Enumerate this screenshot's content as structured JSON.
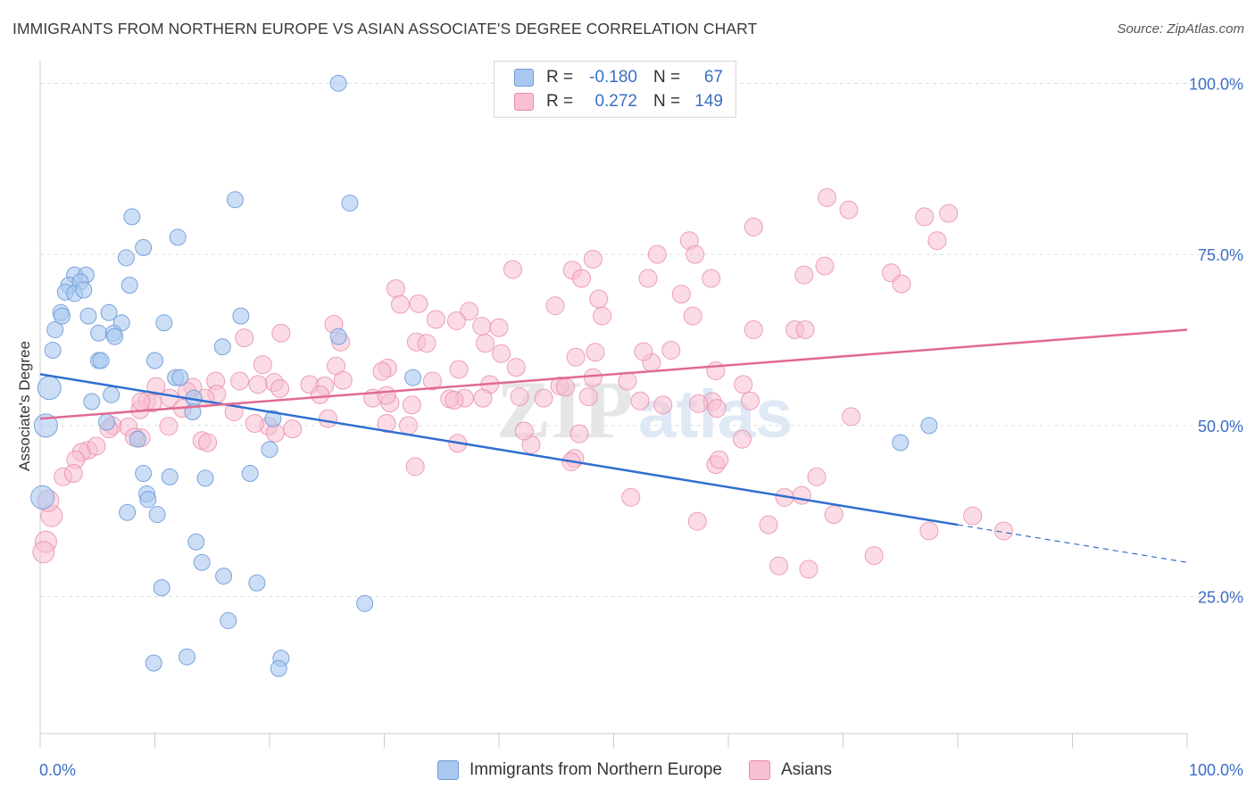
{
  "header": {
    "title": "IMMIGRANTS FROM NORTHERN EUROPE VS ASIAN ASSOCIATE'S DEGREE CORRELATION CHART",
    "source": "Source: ZipAtlas.com"
  },
  "watermark": {
    "part1": "ZIP",
    "part2": "atlas"
  },
  "legend": {
    "series": [
      {
        "r_label": "R =",
        "r_value": "-0.180",
        "n_label": "N =",
        "n_value": "67",
        "color": "#a9c8f0",
        "border": "#6f9ad8"
      },
      {
        "r_label": "R =",
        "r_value": "0.272",
        "n_label": "N =",
        "n_value": "149",
        "color": "#f8c0d2",
        "border": "#e88aa8"
      }
    ]
  },
  "bottom_legend": [
    {
      "label": "Immigrants from Northern Europe",
      "color": "#a9c8f0",
      "border": "#6f9ad8"
    },
    {
      "label": "Asians",
      "color": "#f8c0d2",
      "border": "#e88aa8"
    }
  ],
  "chart_data": {
    "type": "scatter",
    "ylabel": "Associate's Degree",
    "xlim": [
      0,
      100
    ],
    "ylim": [
      5,
      102
    ],
    "x_tick_labels": [
      "0.0%",
      "100.0%"
    ],
    "y_tick_labels": [
      {
        "value": 25,
        "label": "25.0%"
      },
      {
        "value": 50,
        "label": "50.0%"
      },
      {
        "value": 75,
        "label": "75.0%"
      },
      {
        "value": 100,
        "label": "100.0%"
      }
    ],
    "grid": true,
    "colors": {
      "blue_fill": "#a9c8f0",
      "blue_stroke": "#6f9ad8",
      "blue_line": "#2f6fd0",
      "pink_fill": "#f8c0d2",
      "pink_stroke": "#e88aa8",
      "pink_line": "#e06a94",
      "tick_label": "#3b6fc6"
    },
    "series": [
      {
        "name": "Immigrants from Northern Europe",
        "trend": {
          "x0": 0,
          "y0": 57.5,
          "x1": 80,
          "y1": 35.5,
          "dash_x1": 100,
          "dash_y1": 30
        },
        "points": [
          [
            26,
            100
          ],
          [
            17,
            83
          ],
          [
            27,
            82.5
          ],
          [
            8,
            80.5
          ],
          [
            12,
            77.5
          ],
          [
            9,
            76
          ],
          [
            7.5,
            74.5
          ],
          [
            3,
            72
          ],
          [
            4,
            72
          ],
          [
            2.5,
            70.5
          ],
          [
            3.5,
            71
          ],
          [
            7.8,
            70.5
          ],
          [
            2.2,
            69.5
          ],
          [
            3,
            69.3
          ],
          [
            3.8,
            69.8
          ],
          [
            1.8,
            66.5
          ],
          [
            1.9,
            66
          ],
          [
            4.2,
            66
          ],
          [
            6,
            66.5
          ],
          [
            17.5,
            66
          ],
          [
            10.8,
            65
          ],
          [
            7.1,
            65
          ],
          [
            1.3,
            64
          ],
          [
            5.1,
            63.5
          ],
          [
            6.4,
            63.5
          ],
          [
            6.5,
            63
          ],
          [
            26,
            63
          ],
          [
            1.1,
            61
          ],
          [
            15.9,
            61.5
          ],
          [
            5.1,
            59.5
          ],
          [
            5.3,
            59.5
          ],
          [
            10,
            59.5
          ],
          [
            11.8,
            57
          ],
          [
            12.2,
            57
          ],
          [
            0.8,
            55.5
          ],
          [
            32.5,
            57
          ],
          [
            6.2,
            54.5
          ],
          [
            4.5,
            53.5
          ],
          [
            13.4,
            54
          ],
          [
            13.3,
            52
          ],
          [
            5.8,
            50.5
          ],
          [
            0.5,
            50
          ],
          [
            20.3,
            51
          ],
          [
            75,
            47.5
          ],
          [
            77.5,
            50
          ],
          [
            8.5,
            48
          ],
          [
            20,
            46.5
          ],
          [
            9,
            43
          ],
          [
            11.3,
            42.5
          ],
          [
            14.4,
            42.3
          ],
          [
            18.3,
            43
          ],
          [
            9.3,
            40
          ],
          [
            9.4,
            39.2
          ],
          [
            0.2,
            39.5
          ],
          [
            7.6,
            37.3
          ],
          [
            10.2,
            37
          ],
          [
            13.6,
            33
          ],
          [
            14.1,
            30
          ],
          [
            16,
            28
          ],
          [
            18.9,
            27
          ],
          [
            10.6,
            26.3
          ],
          [
            28.3,
            24
          ],
          [
            16.4,
            21.5
          ],
          [
            12.8,
            16.2
          ],
          [
            9.9,
            15.3
          ],
          [
            21,
            16
          ],
          [
            20.8,
            14.5
          ]
        ]
      },
      {
        "name": "Asians",
        "trend": {
          "x0": 0,
          "y0": 51,
          "x1": 100,
          "y1": 64
        },
        "points": [
          [
            68.6,
            83.3
          ],
          [
            70.5,
            81.5
          ],
          [
            77.1,
            80.5
          ],
          [
            79.2,
            81
          ],
          [
            62.2,
            79
          ],
          [
            56.6,
            77
          ],
          [
            78.2,
            77
          ],
          [
            48.2,
            74.3
          ],
          [
            53.8,
            75
          ],
          [
            57.1,
            75
          ],
          [
            68.4,
            73.3
          ],
          [
            66.6,
            72
          ],
          [
            41.2,
            72.8
          ],
          [
            46.4,
            72.7
          ],
          [
            47.2,
            71.5
          ],
          [
            53,
            71.5
          ],
          [
            58.5,
            71.5
          ],
          [
            74.2,
            72.3
          ],
          [
            75.1,
            70.7
          ],
          [
            31,
            70
          ],
          [
            55.9,
            69.2
          ],
          [
            48.7,
            68.5
          ],
          [
            31.4,
            67.7
          ],
          [
            33,
            67.8
          ],
          [
            44.9,
            67.5
          ],
          [
            37.4,
            66.7
          ],
          [
            49,
            66
          ],
          [
            56.9,
            66
          ],
          [
            36.3,
            65.3
          ],
          [
            34.5,
            65.5
          ],
          [
            25.6,
            64.8
          ],
          [
            38.5,
            64.5
          ],
          [
            40,
            64.3
          ],
          [
            62.2,
            64
          ],
          [
            65.8,
            64
          ],
          [
            66.7,
            64
          ],
          [
            21,
            63.5
          ],
          [
            17.8,
            62.8
          ],
          [
            26.2,
            62.2
          ],
          [
            32.8,
            62.2
          ],
          [
            33.7,
            62
          ],
          [
            38.8,
            62
          ],
          [
            55,
            61
          ],
          [
            48.4,
            60.7
          ],
          [
            46.7,
            60
          ],
          [
            53.3,
            59.2
          ],
          [
            19.4,
            58.9
          ],
          [
            25.8,
            58.7
          ],
          [
            30.3,
            58.4
          ],
          [
            36.5,
            58.2
          ],
          [
            41.5,
            58.5
          ],
          [
            58.9,
            58
          ],
          [
            29.8,
            57.9
          ],
          [
            26.4,
            56.6
          ],
          [
            34.2,
            56.5
          ],
          [
            23.5,
            56
          ],
          [
            20.4,
            56.3
          ],
          [
            19,
            56
          ],
          [
            17.4,
            56.5
          ],
          [
            20.9,
            55.4
          ],
          [
            24.8,
            55.8
          ],
          [
            45.3,
            55.8
          ],
          [
            45.8,
            55.6
          ],
          [
            39.2,
            56
          ],
          [
            48.2,
            57
          ],
          [
            51.2,
            56.5
          ],
          [
            61.3,
            56
          ],
          [
            13.3,
            55.6
          ],
          [
            15.3,
            56.5
          ],
          [
            10.1,
            55.7
          ],
          [
            12.8,
            55
          ],
          [
            15.4,
            54.6
          ],
          [
            14.4,
            54
          ],
          [
            9.3,
            53.6
          ],
          [
            9.8,
            53.3
          ],
          [
            11.3,
            54
          ],
          [
            30.5,
            53.3
          ],
          [
            32.4,
            53
          ],
          [
            37,
            54
          ],
          [
            29,
            54
          ],
          [
            24.4,
            54.5
          ],
          [
            30.2,
            54.4
          ],
          [
            35.7,
            53.9
          ],
          [
            36.1,
            53.7
          ],
          [
            38.6,
            54
          ],
          [
            41.8,
            54.2
          ],
          [
            43.9,
            54
          ],
          [
            47.8,
            54.2
          ],
          [
            52.3,
            53.6
          ],
          [
            58.6,
            53.5
          ],
          [
            57.4,
            53.2
          ],
          [
            54.3,
            53
          ],
          [
            59,
            52.5
          ],
          [
            61.9,
            53.6
          ],
          [
            70.7,
            51.3
          ],
          [
            12.4,
            52.5
          ],
          [
            8.7,
            52.3
          ],
          [
            16.9,
            52
          ],
          [
            25.1,
            51
          ],
          [
            30.2,
            50.3
          ],
          [
            32.1,
            50
          ],
          [
            22,
            49.5
          ],
          [
            6.3,
            50
          ],
          [
            6,
            49.5
          ],
          [
            7.7,
            49.8
          ],
          [
            19.9,
            49.9
          ],
          [
            20.5,
            48.9
          ],
          [
            11.2,
            49.9
          ],
          [
            8.8,
            48.2
          ],
          [
            8.2,
            48.3
          ],
          [
            14.1,
            47.8
          ],
          [
            14.6,
            47.5
          ],
          [
            36.4,
            47.4
          ],
          [
            42.8,
            47.2
          ],
          [
            61.2,
            48
          ],
          [
            47,
            48.8
          ],
          [
            4.2,
            46.4
          ],
          [
            3.6,
            46.1
          ],
          [
            4.9,
            47
          ],
          [
            3.1,
            45
          ],
          [
            2,
            42.5
          ],
          [
            2.9,
            43
          ],
          [
            32.7,
            44
          ],
          [
            46.6,
            45.2
          ],
          [
            58.9,
            44.3
          ],
          [
            59.2,
            45
          ],
          [
            67.7,
            42.5
          ],
          [
            69.2,
            37
          ],
          [
            51.5,
            39.5
          ],
          [
            64.9,
            39.5
          ],
          [
            81.3,
            36.8
          ],
          [
            1,
            36.8
          ],
          [
            0.5,
            33
          ],
          [
            0.3,
            31.5
          ],
          [
            57.3,
            36
          ],
          [
            63.5,
            35.5
          ],
          [
            77.5,
            34.6
          ],
          [
            84,
            34.6
          ],
          [
            72.7,
            31
          ],
          [
            64.4,
            29.5
          ],
          [
            67,
            29
          ],
          [
            8.8,
            53.5
          ],
          [
            40.2,
            60.5
          ],
          [
            66.4,
            39.8
          ],
          [
            0.7,
            39
          ],
          [
            42.2,
            49.2
          ],
          [
            46.3,
            44.7
          ],
          [
            52.6,
            60.8
          ],
          [
            18.7,
            50.3
          ]
        ]
      }
    ]
  }
}
